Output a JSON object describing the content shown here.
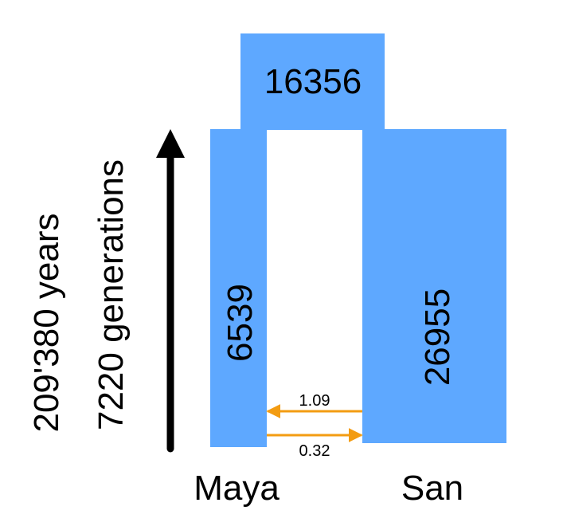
{
  "colors": {
    "population_block": "#5ea8ff",
    "migration_arrow": "#f39c12",
    "time_arrow": "#000000"
  },
  "ancestral": {
    "size": "16356"
  },
  "populations": [
    {
      "name": "Maya",
      "size": "6539"
    },
    {
      "name": "San",
      "size": "26955"
    }
  ],
  "migration": [
    {
      "from": "San",
      "to": "Maya",
      "rate": "1.09"
    },
    {
      "from": "Maya",
      "to": "San",
      "rate": "0.32"
    }
  ],
  "time": {
    "years_label": "209'380 years",
    "generations_label": "7220 generations"
  }
}
